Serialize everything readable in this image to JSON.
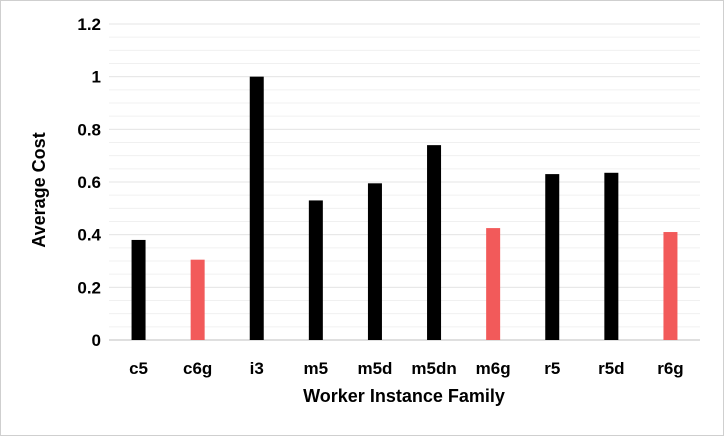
{
  "chart_data": {
    "type": "bar",
    "title": "",
    "xlabel": "Worker Instance Family",
    "ylabel": "Average Cost",
    "ylim": [
      0,
      1.2
    ],
    "yticks": [
      {
        "value": 0,
        "label": "0"
      },
      {
        "value": 0.2,
        "label": "0.2"
      },
      {
        "value": 0.4,
        "label": "0.4"
      },
      {
        "value": 0.6,
        "label": "0.6"
      },
      {
        "value": 0.8,
        "label": "0.8"
      },
      {
        "value": 1.0,
        "label": "1"
      },
      {
        "value": 1.2,
        "label": "1.2"
      }
    ],
    "grid": true,
    "legend": "none",
    "categories": [
      "c5",
      "c6g",
      "i3",
      "m5",
      "m5d",
      "m5dn",
      "m6g",
      "r5",
      "r5d",
      "r6g"
    ],
    "values": [
      0.38,
      0.305,
      1.0,
      0.53,
      0.595,
      0.74,
      0.425,
      0.63,
      0.635,
      0.41
    ],
    "colors": [
      "#000000",
      "#f25a5a",
      "#000000",
      "#000000",
      "#000000",
      "#000000",
      "#f25a5a",
      "#000000",
      "#000000",
      "#f25a5a"
    ]
  }
}
